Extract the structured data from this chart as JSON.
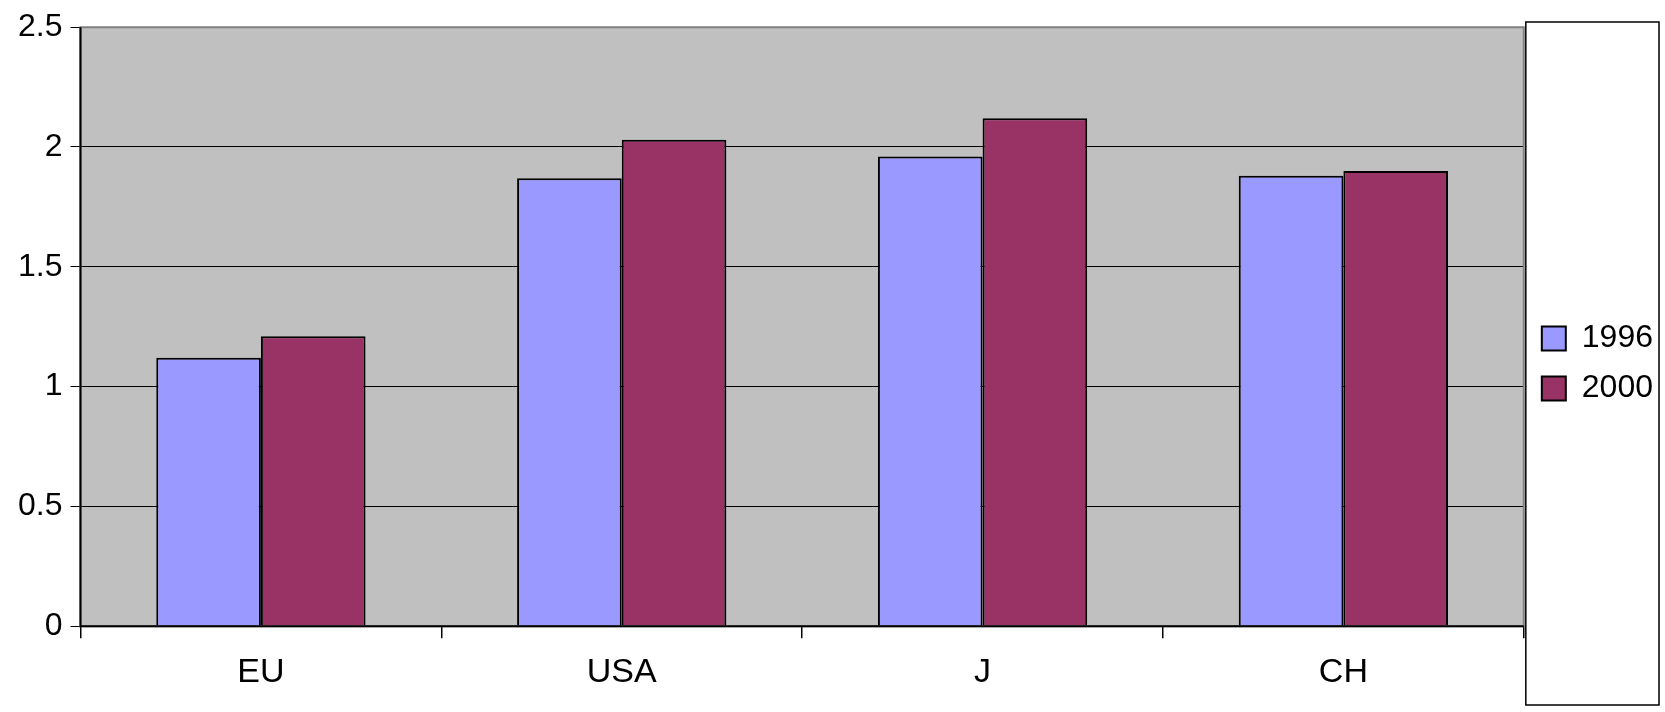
{
  "chart_data": {
    "type": "bar",
    "categories": [
      "EU",
      "USA",
      "J",
      "CH"
    ],
    "series": [
      {
        "name": "1996",
        "color": "#9999ff",
        "values": [
          1.12,
          1.87,
          1.96,
          1.88
        ]
      },
      {
        "name": "2000",
        "color": "#993366",
        "values": [
          1.21,
          2.03,
          2.12,
          1.9
        ]
      }
    ],
    "ylim": [
      0,
      2.5
    ],
    "yticks": [
      0,
      0.5,
      1,
      1.5,
      2,
      2.5
    ],
    "grid": "y",
    "legend": "right"
  }
}
